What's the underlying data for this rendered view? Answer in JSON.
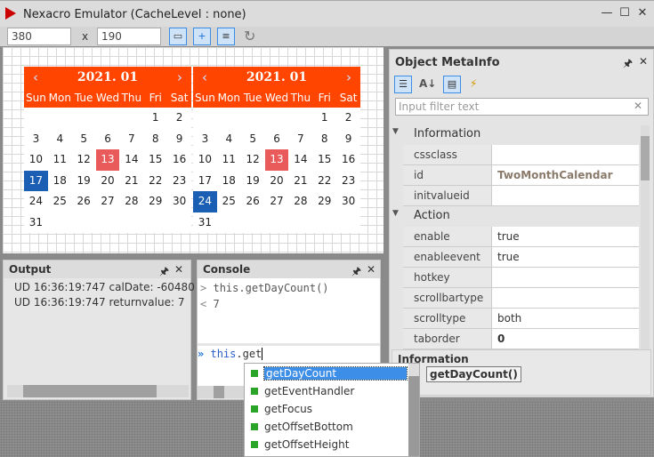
{
  "window": {
    "title": "Nexacro Emulator (CacheLevel : none)",
    "minimize": "—",
    "maximize": "☐",
    "close": "✕"
  },
  "toolbar": {
    "width": "380",
    "x_label": "x",
    "height": "190",
    "refresh": "↻"
  },
  "calendars": [
    {
      "title": "2021.  01",
      "prev": "‹",
      "next": "›"
    },
    {
      "title": "2021.  01",
      "prev": "‹",
      "next": "›"
    }
  ],
  "weekdays": [
    "Sun",
    "Mon",
    "Tue",
    "Wed",
    "Thu",
    "Fri",
    "Sat"
  ],
  "weeks": [
    [
      "",
      "",
      "",
      "",
      "",
      "1",
      "2"
    ],
    [
      "3",
      "4",
      "5",
      "6",
      "7",
      "8",
      "9"
    ],
    [
      "10",
      "11",
      "12",
      "13",
      "14",
      "15",
      "16"
    ],
    [
      "17",
      "18",
      "19",
      "20",
      "21",
      "22",
      "23"
    ],
    [
      "24",
      "25",
      "26",
      "27",
      "28",
      "29",
      "30"
    ],
    [
      "31",
      "",
      "",
      "",
      "",
      "",
      ""
    ]
  ],
  "calendar_state": {
    "holiday": "13",
    "selected": [
      "17",
      "24"
    ],
    "colors": {
      "header": "#ff4500",
      "holiday": "#e95b5b",
      "selected": "#1a5fb4"
    }
  },
  "meta": {
    "title": "Object MetaInfo",
    "pin": "🖈",
    "close": "✕",
    "filter_placeholder": "Input filter text",
    "groups": [
      {
        "name": "Information",
        "props": [
          {
            "k": "cssclass",
            "v": ""
          },
          {
            "k": "id",
            "v": "TwoMonthCalendar"
          },
          {
            "k": "initvalueid",
            "v": ""
          }
        ]
      },
      {
        "name": "Action",
        "props": [
          {
            "k": "enable",
            "v": "true"
          },
          {
            "k": "enableevent",
            "v": "true"
          },
          {
            "k": "hotkey",
            "v": ""
          },
          {
            "k": "scrollbartype",
            "v": ""
          },
          {
            "k": "scrolltype",
            "v": "both"
          },
          {
            "k": "taborder",
            "v": "0"
          }
        ]
      }
    ],
    "info_title": "Information",
    "info_value": "getDayCount()"
  },
  "output": {
    "title": "Output",
    "lines": [
      "UD 16:36:19:747 calDate: -60480",
      "UD 16:36:19:747 returnvalue: 7"
    ]
  },
  "console": {
    "title": "Console",
    "history": [
      {
        "p": ">",
        "t": "this.getDayCount()"
      },
      {
        "p": "<",
        "t": "7"
      }
    ],
    "prompt": "»",
    "input_obj": "this",
    "input_rest": ".get"
  },
  "autocomplete": [
    "getDayCount",
    "getEventHandler",
    "getFocus",
    "getOffsetBottom",
    "getOffsetHeight"
  ]
}
